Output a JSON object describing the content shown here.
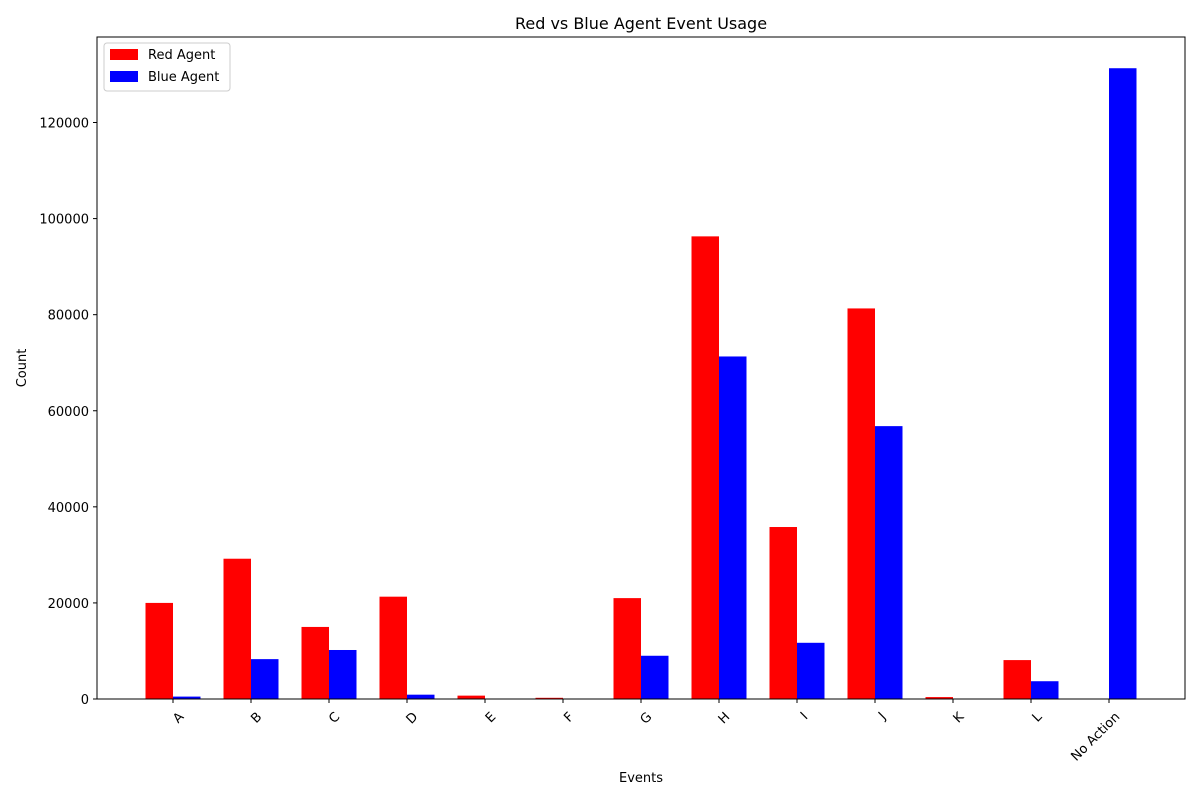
{
  "chart_data": {
    "type": "bar",
    "title": "Red vs Blue Agent Event Usage",
    "xlabel": "Events",
    "ylabel": "Count",
    "categories": [
      "A",
      "B",
      "C",
      "D",
      "E",
      "F",
      "G",
      "H",
      "I",
      "J",
      "K",
      "L",
      "No Action"
    ],
    "series": [
      {
        "name": "Red Agent",
        "color": "#ff0000",
        "values": [
          20000,
          29200,
          15000,
          21300,
          700,
          250,
          21000,
          96300,
          35800,
          81300,
          400,
          8100,
          0
        ]
      },
      {
        "name": "Blue Agent",
        "color": "#0000ff",
        "values": [
          500,
          8300,
          10200,
          900,
          0,
          0,
          9000,
          71300,
          11700,
          56800,
          0,
          3700,
          131300
        ]
      }
    ],
    "ylim": [
      0,
      137800
    ],
    "yticks": [
      0,
      20000,
      40000,
      60000,
      80000,
      100000,
      120000
    ],
    "legend_position": "top-left",
    "grid": false
  }
}
